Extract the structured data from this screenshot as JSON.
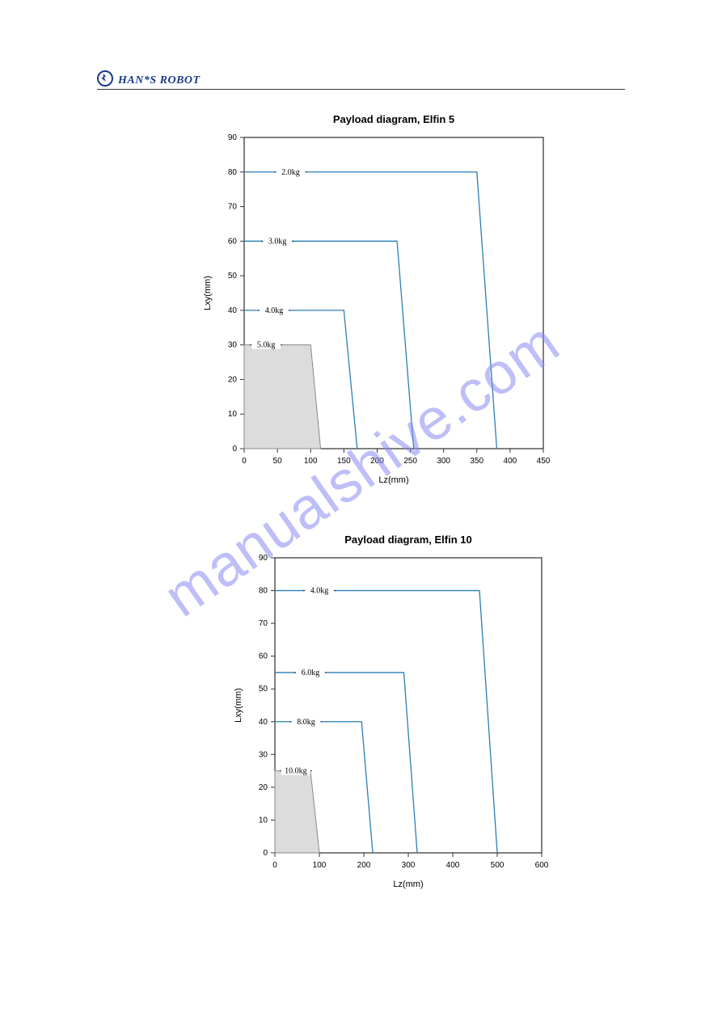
{
  "brand": "HAN*S ROBOT",
  "watermark": "manualshive.com",
  "chart1": {
    "type": "line",
    "title": "Payload diagram, Elfin 5",
    "title_fontsize": 13,
    "xlabel": "Lz(mm)",
    "ylabel": "Lxy(mm)",
    "label_fontsize": 11,
    "tick_fontsize": 10,
    "xlim": [
      0,
      450
    ],
    "ylim": [
      0,
      90
    ],
    "xtick_step": 50,
    "ytick_step": 10,
    "axis_color": "#000000",
    "tick_color": "#333333",
    "line_color": "#2a7fb8",
    "filled_color": "#dcdcdc",
    "filled_stroke": "#888888",
    "background_color": "#ffffff",
    "curves": [
      {
        "label": "2.0kg",
        "label_x": 70,
        "label_y": 80,
        "pts": [
          [
            0,
            80
          ],
          [
            350,
            80
          ],
          [
            380,
            0
          ]
        ]
      },
      {
        "label": "3.0kg",
        "label_x": 50,
        "label_y": 60,
        "pts": [
          [
            0,
            60
          ],
          [
            230,
            60
          ],
          [
            255,
            0
          ]
        ]
      },
      {
        "label": "4.0kg",
        "label_x": 45,
        "label_y": 40,
        "pts": [
          [
            0,
            40
          ],
          [
            150,
            40
          ],
          [
            170,
            0
          ]
        ]
      },
      {
        "label": "5.0kg",
        "label_x": 33,
        "label_y": 30,
        "filled": true,
        "pts": [
          [
            0,
            30
          ],
          [
            100,
            30
          ],
          [
            115,
            0
          ],
          [
            0,
            0
          ]
        ]
      }
    ]
  },
  "chart2": {
    "type": "line",
    "title": "Payload diagram, Elfin 10",
    "title_fontsize": 13,
    "xlabel": "Lz(mm)",
    "ylabel": "Lxy(mm)",
    "label_fontsize": 11,
    "tick_fontsize": 10,
    "xlim": [
      0,
      600
    ],
    "ylim": [
      0,
      90
    ],
    "xtick_step": 100,
    "ytick_step": 10,
    "axis_color": "#000000",
    "tick_color": "#333333",
    "line_color": "#2a7fb8",
    "filled_color": "#dcdcdc",
    "filled_stroke": "#888888",
    "background_color": "#ffffff",
    "curves": [
      {
        "label": "4.0kg",
        "label_x": 100,
        "label_y": 80,
        "pts": [
          [
            0,
            80
          ],
          [
            460,
            80
          ],
          [
            500,
            0
          ]
        ]
      },
      {
        "label": "6.0kg",
        "label_x": 80,
        "label_y": 55,
        "pts": [
          [
            0,
            55
          ],
          [
            290,
            55
          ],
          [
            320,
            0
          ]
        ]
      },
      {
        "label": "8.0kg",
        "label_x": 70,
        "label_y": 40,
        "pts": [
          [
            0,
            40
          ],
          [
            195,
            40
          ],
          [
            220,
            0
          ]
        ]
      },
      {
        "label": "10.0kg",
        "label_x": 47,
        "label_y": 25,
        "filled": true,
        "pts": [
          [
            0,
            25
          ],
          [
            80,
            25
          ],
          [
            100,
            0
          ],
          [
            0,
            0
          ]
        ]
      }
    ]
  }
}
